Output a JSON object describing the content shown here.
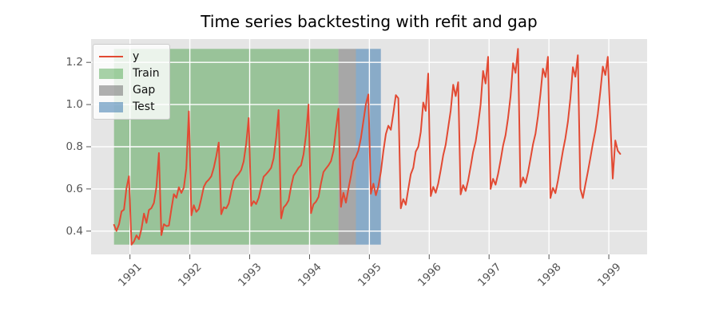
{
  "title": "Time series backtesting with refit and gap",
  "legend": {
    "items": [
      {
        "label": "y",
        "type": "line",
        "color": "#E24A33"
      },
      {
        "label": "Train",
        "type": "patch",
        "color": "rgba(0,128,0,0.33)"
      },
      {
        "label": "Gap",
        "type": "patch",
        "color": "rgba(128,128,128,0.61)"
      },
      {
        "label": "Test",
        "type": "patch",
        "color": "rgba(70,130,180,0.58)"
      }
    ]
  },
  "chart_data": {
    "type": "line",
    "title": "Time series backtesting with refit and gap",
    "x_unit": "year",
    "xlim": [
      1990.35,
      1999.64
    ],
    "ylim": [
      0.2896,
      1.3104
    ],
    "grid": true,
    "legend_position": "upper left",
    "plot_bg": "#e5e5e5",
    "grid_color": "#ffffff",
    "tick_color": "#555555",
    "line_color": "#E24A33",
    "band_yrange": [
      0.336,
      1.264
    ],
    "bands": [
      {
        "name": "Train",
        "x0": 1990.7333,
        "x1": 1994.4833,
        "color": "rgba(0,128,0,0.33)"
      },
      {
        "name": "Gap",
        "x0": 1994.4833,
        "x1": 1994.775,
        "color": "rgba(128,128,128,0.61)"
      },
      {
        "name": "Test",
        "x0": 1994.775,
        "x1": 1995.1917,
        "color": "rgba(70,130,180,0.58)"
      }
    ],
    "xticks": [
      {
        "v": 1991,
        "label": "1991"
      },
      {
        "v": 1992,
        "label": "1992"
      },
      {
        "v": 1993,
        "label": "1993"
      },
      {
        "v": 1994,
        "label": "1994"
      },
      {
        "v": 1995,
        "label": "1995"
      },
      {
        "v": 1996,
        "label": "1996"
      },
      {
        "v": 1997,
        "label": "1997"
      },
      {
        "v": 1998,
        "label": "1998"
      },
      {
        "v": 1999,
        "label": "1999"
      }
    ],
    "yticks": [
      {
        "v": 0.4,
        "label": "0.4"
      },
      {
        "v": 0.6,
        "label": "0.6"
      },
      {
        "v": 0.8,
        "label": "0.8"
      },
      {
        "v": 1.0,
        "label": "1.0"
      },
      {
        "v": 1.2,
        "label": "1.2"
      }
    ],
    "series": [
      {
        "name": "y",
        "color": "#E24A33",
        "x_start": 1990.7333,
        "x_step": 0.0416667,
        "values": [
          0.43,
          0.401,
          0.432,
          0.493,
          0.502,
          0.603,
          0.66,
          0.336,
          0.351,
          0.38,
          0.362,
          0.411,
          0.483,
          0.439,
          0.5,
          0.509,
          0.534,
          0.609,
          0.77,
          0.381,
          0.433,
          0.424,
          0.426,
          0.504,
          0.575,
          0.558,
          0.608,
          0.581,
          0.606,
          0.697,
          0.968,
          0.475,
          0.523,
          0.491,
          0.505,
          0.555,
          0.61,
          0.632,
          0.644,
          0.66,
          0.7,
          0.755,
          0.82,
          0.48,
          0.513,
          0.508,
          0.531,
          0.588,
          0.64,
          0.658,
          0.671,
          0.69,
          0.73,
          0.815,
          0.936,
          0.52,
          0.542,
          0.528,
          0.558,
          0.61,
          0.658,
          0.67,
          0.684,
          0.7,
          0.745,
          0.84,
          0.974,
          0.46,
          0.512,
          0.525,
          0.545,
          0.612,
          0.663,
          0.681,
          0.7,
          0.712,
          0.765,
          0.858,
          1.0,
          0.485,
          0.527,
          0.54,
          0.562,
          0.627,
          0.68,
          0.697,
          0.712,
          0.732,
          0.78,
          0.882,
          0.98,
          0.515,
          0.582,
          0.535,
          0.602,
          0.662,
          0.732,
          0.752,
          0.782,
          0.842,
          0.922,
          1.002,
          1.048,
          0.577,
          0.625,
          0.57,
          0.612,
          0.68,
          0.78,
          0.86,
          0.9,
          0.88,
          0.957,
          1.045,
          1.03,
          0.508,
          0.552,
          0.525,
          0.6,
          0.67,
          0.7,
          0.777,
          0.8,
          0.87,
          1.01,
          0.97,
          1.147,
          0.566,
          0.61,
          0.582,
          0.625,
          0.69,
          0.76,
          0.81,
          0.89,
          0.97,
          1.094,
          1.04,
          1.106,
          0.574,
          0.618,
          0.59,
          0.64,
          0.705,
          0.775,
          0.825,
          0.905,
          1.0,
          1.159,
          1.1,
          1.226,
          0.6,
          0.648,
          0.62,
          0.67,
          0.735,
          0.805,
          0.855,
          0.935,
          1.04,
          1.196,
          1.15,
          1.264,
          0.61,
          0.655,
          0.628,
          0.678,
          0.742,
          0.812,
          0.862,
          0.945,
          1.05,
          1.17,
          1.13,
          1.226,
          0.557,
          0.605,
          0.58,
          0.64,
          0.71,
          0.78,
          0.84,
          0.92,
          1.03,
          1.177,
          1.132,
          1.234,
          0.6,
          0.557,
          0.62,
          0.68,
          0.745,
          0.815,
          0.875,
          0.955,
          1.06,
          1.18,
          1.14,
          1.226,
          0.93,
          0.649,
          0.83,
          0.781,
          0.766
        ]
      }
    ]
  }
}
